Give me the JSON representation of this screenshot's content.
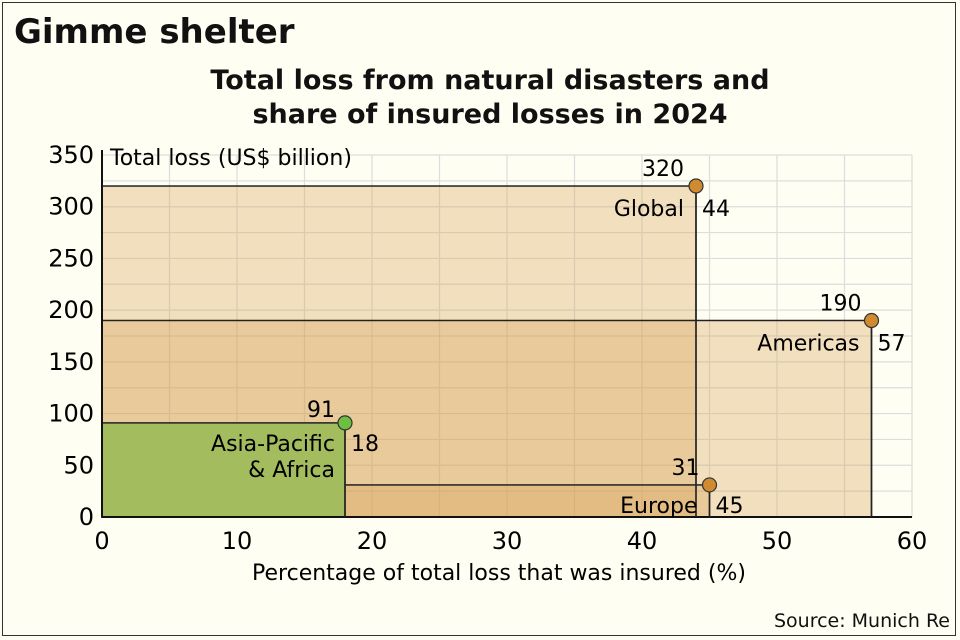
{
  "header": {
    "title": "Gimme shelter",
    "subtitle_line1": "Total loss from natural disasters and",
    "subtitle_line2": "share of insured losses in 2024",
    "source": "Source: Munich Re"
  },
  "chart_data": {
    "type": "area",
    "title": "Total loss from natural disasters and share of insured losses in 2024",
    "xlabel": "Percentage of total loss that was insured (%)",
    "ylabel": "Total loss (US$ billion)",
    "xlim": [
      0,
      60
    ],
    "ylim": [
      0,
      350
    ],
    "xticks": [
      0,
      10,
      20,
      30,
      40,
      50,
      60
    ],
    "yticks": [
      0,
      50,
      100,
      150,
      200,
      250,
      300,
      350
    ],
    "grid": true,
    "series": [
      {
        "name": "Global",
        "x": 44,
        "y": 320,
        "color": "#d08a30",
        "fill": "#e8c98e"
      },
      {
        "name": "Americas",
        "x": 57,
        "y": 190,
        "color": "#d08a30",
        "fill": "#e8c98e"
      },
      {
        "name": "Europe",
        "x": 45,
        "y": 31,
        "color": "#d08a30",
        "fill": "#e8c98e"
      },
      {
        "name": "Asia-Pacific & Africa",
        "x": 18,
        "y": 91,
        "color": "#6cc040",
        "fill": "#a3bc5e"
      }
    ]
  }
}
